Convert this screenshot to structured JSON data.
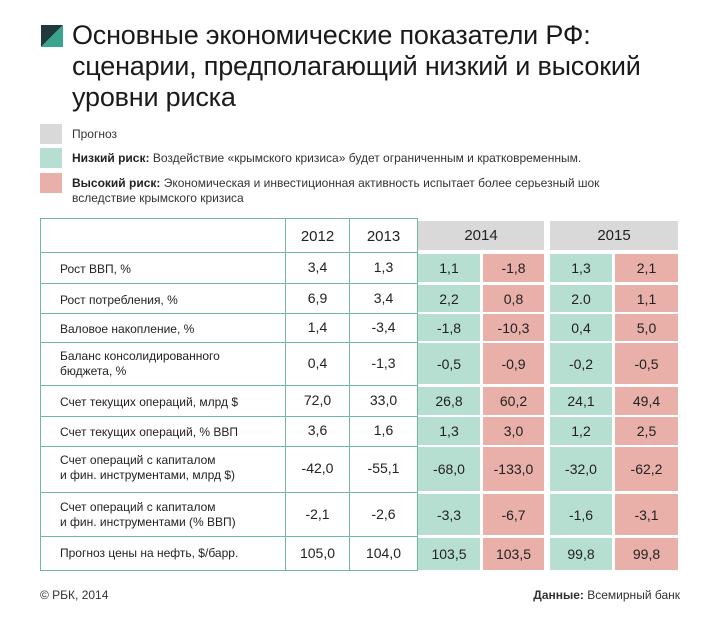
{
  "title": "Основные экономические показатели РФ: сценарии, предполагающий низкий и высокий уровни риска",
  "colors": {
    "forecast": "#d9d9d9",
    "low": "#b6dfd2",
    "high": "#e8b0a8",
    "accent": "#3aa58f"
  },
  "legend": [
    {
      "bold": "",
      "text": "Прогноз"
    },
    {
      "bold": "Низкий риск:",
      "text": " Воздействие «крымского кризиса» будет ограниченным и кратковременным."
    },
    {
      "bold": "Высокий риск:",
      "text": " Экономическая и инвестиционная активность испытает более серьезный шок вследствие крымского кризиса"
    }
  ],
  "headers": [
    "2012",
    "2013",
    "2014",
    "2015"
  ],
  "rows": [
    {
      "label": "Рост ВВП, %",
      "v2012": "3,4",
      "v2013": "1,3",
      "low2014": "1,1",
      "high2014": "-1,8",
      "low2015": "1,3",
      "high2015": "2,1"
    },
    {
      "label": "Рост потребления, %",
      "v2012": "6,9",
      "v2013": "3,4",
      "low2014": "2,2",
      "high2014": "0,8",
      "low2015": "2.0",
      "high2015": "1,1"
    },
    {
      "label": "Валовое накопление, %",
      "v2012": "1,4",
      "v2013": "-3,4",
      "low2014": "-1,8",
      "high2014": "-10,3",
      "low2015": "0,4",
      "high2015": "5,0"
    },
    {
      "label": "Баланс консолидированного\nбюджета, %",
      "v2012": "0,4",
      "v2013": "-1,3",
      "low2014": "-0,5",
      "high2014": "-0,9",
      "low2015": "-0,2",
      "high2015": "-0,5"
    },
    {
      "label": "Счет текущих операций, млрд $",
      "v2012": "72,0",
      "v2013": "33,0",
      "low2014": "26,8",
      "high2014": "60,2",
      "low2015": "24,1",
      "high2015": "49,4"
    },
    {
      "label": "Счет текущих операций, % ВВП",
      "v2012": "3,6",
      "v2013": "1,6",
      "low2014": "1,3",
      "high2014": "3,0",
      "low2015": "1,2",
      "high2015": "2,5"
    },
    {
      "label": "Счет операций с капиталом\nи фин. инструментами, млрд $)",
      "v2012": "-42,0",
      "v2013": "-55,1",
      "low2014": "-68,0",
      "high2014": "-133,0",
      "low2015": "-32,0",
      "high2015": "-62,2"
    },
    {
      "label": "Счет операций с капиталом\nи фин. инструментами (% ВВП)",
      "v2012": "-2,1",
      "v2013": "-2,6",
      "low2014": "-3,3",
      "high2014": "-6,7",
      "low2015": "-1,6",
      "high2015": "-3,1"
    },
    {
      "label": "Прогноз цены на нефть, $/барр.",
      "v2012": "105,0",
      "v2013": "104,0",
      "low2014": "103,5",
      "high2014": "103,5",
      "low2015": "99,8",
      "high2015": "99,8"
    }
  ],
  "footer": {
    "copyright": "© РБК, 2014",
    "source_label": "Данные:",
    "source_text": " Всемирный банк"
  }
}
